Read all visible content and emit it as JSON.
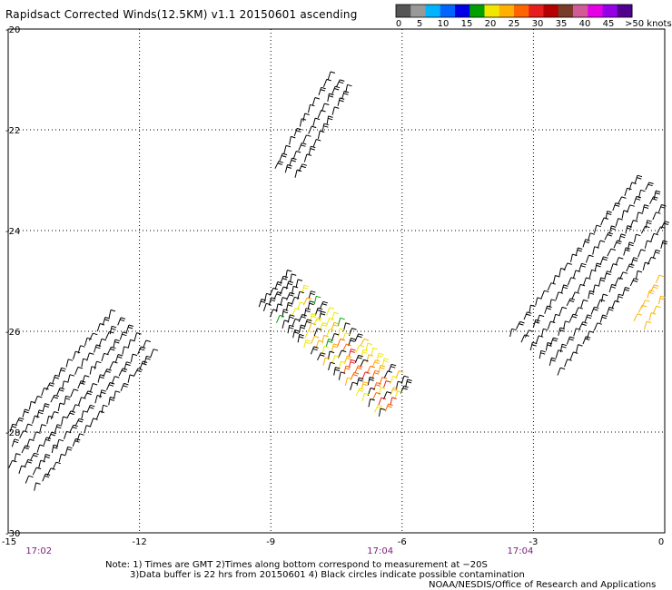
{
  "title": "Rapidsact Corrected Winds(12.5KM) v1.1 20150601 ascending",
  "colorbar": {
    "swatches": [
      "#555555",
      "#999999",
      "#00b4ff",
      "#0064ff",
      "#0000e6",
      "#00a000",
      "#f0e600",
      "#ffb000",
      "#ff6400",
      "#e61e1e",
      "#b40000",
      "#783c28",
      "#d25a96",
      "#e600e6",
      "#9600e6",
      "#50008c"
    ],
    "labels": [
      "0",
      "5",
      "10",
      "15",
      "20",
      "25",
      "30",
      "35",
      "40",
      "45",
      ">50 knots"
    ]
  },
  "chart_data": {
    "type": "wind-barb",
    "x_ticks": [
      "-15",
      "-12",
      "-9",
      "-6",
      "-3",
      "0"
    ],
    "y_ticks": [
      "-20",
      "-22",
      "-24",
      "-26",
      "-28",
      "-30"
    ],
    "xlim": [
      -15,
      0
    ],
    "ylim": [
      -30,
      -20
    ],
    "grid": true,
    "time_labels": [
      {
        "lon": -14.3,
        "text": "17:02"
      },
      {
        "lon": -6.5,
        "text": "17:04"
      },
      {
        "lon": -3.3,
        "text": "17:04"
      }
    ],
    "swaths": [
      {
        "name": "A",
        "lat0": -28.8,
        "lon0": -14.9,
        "lat1": -26.0,
        "lon1": -12.1,
        "rows": 6,
        "cols": 20,
        "width": 1.3,
        "color": "#000000"
      },
      {
        "name": "B",
        "lat0": -22.9,
        "lon0": -8.7,
        "lat1": -21.0,
        "lon1": -7.4,
        "rows": 3,
        "cols": 12,
        "width": 0.5,
        "color": "#000000"
      },
      {
        "name": "C",
        "lat0": -25.2,
        "lon0": -9.0,
        "lat1": -27.5,
        "lon1": -6.1,
        "rows": 6,
        "cols": 22,
        "width": 0.9,
        "color": "#000000",
        "colored": true
      },
      {
        "name": "D",
        "lat0": -26.5,
        "lon0": -3.0,
        "lat1": -23.3,
        "lon1": 0.0,
        "rows": 6,
        "cols": 22,
        "width": 1.4,
        "color": "#000000"
      },
      {
        "name": "E",
        "lat0": -25.9,
        "lon0": -0.6,
        "lat1": -25.0,
        "lon1": 0.0,
        "rows": 2,
        "cols": 6,
        "width": 0.3,
        "color": "#ffb000"
      }
    ]
  },
  "notes": {
    "line1": "Note: 1) Times are GMT 2)Times along bottom correspond to measurement at −20S",
    "line2": "3)Data buffer is 22 hrs from 20150601 4) Black circles indicate possible contamination",
    "line3": "NOAA/NESDIS/Office of Research and Applications"
  }
}
